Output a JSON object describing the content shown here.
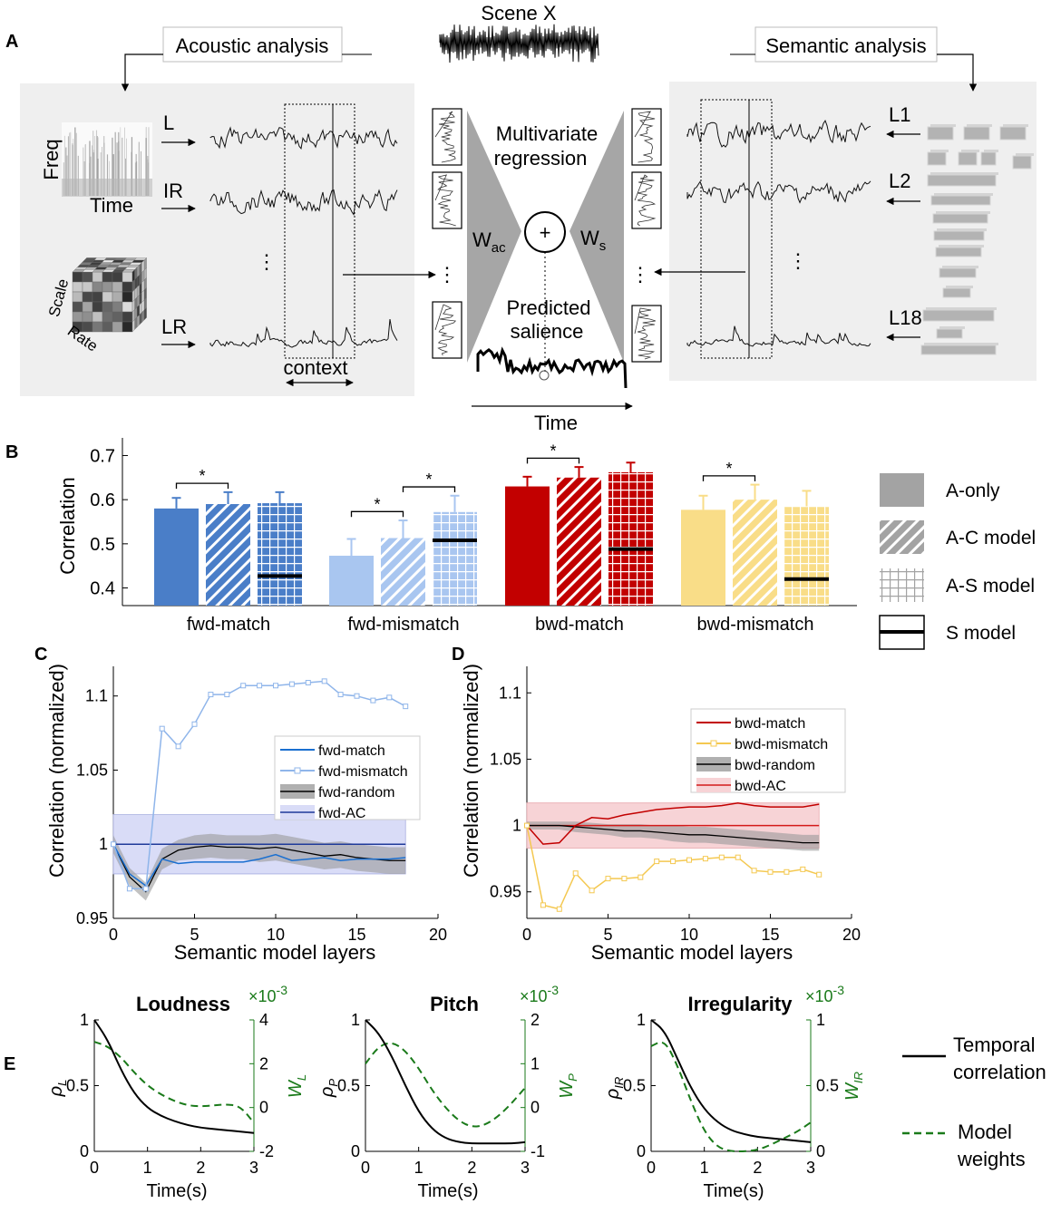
{
  "panelA": {
    "letter": "A",
    "scene_title": "Scene X",
    "acoustic_label": "Acoustic analysis",
    "semantic_label": "Semantic analysis",
    "freq_label": "Freq",
    "time_label": "Time",
    "scale_label": "Scale",
    "rate_label": "Rate",
    "feat_L": "L",
    "feat_IR": "IR",
    "feat_LR": "LR",
    "dots": "⋮",
    "context_label": "context",
    "regression_label": "Multivariate regression",
    "regression_line1": "Multivariate",
    "regression_line2": "regression",
    "w_ac": "W",
    "w_ac_sub": "ac",
    "w_s": "W",
    "w_s_sub": "s",
    "plus": "+",
    "predicted_line1": "Predicted",
    "predicted_line2": "salience",
    "pred_time_label": "Time",
    "layer_L1": "L1",
    "layer_L2": "L2",
    "layer_L18": "L18"
  },
  "panelB": {
    "letter": "B",
    "ylabel": "Correlation",
    "yticks": [
      "0.4",
      "0.5",
      "0.6",
      "0.7"
    ],
    "legend": [
      "A-only",
      "A-C model",
      "A-S model",
      "S model"
    ],
    "sig": "*"
  },
  "panelC": {
    "letter": "C",
    "ylabel": "Correlation (normalized)",
    "xlabel": "Semantic model layers",
    "xticks": [
      "0",
      "5",
      "10",
      "15",
      "20"
    ],
    "yticks": [
      "0.95",
      "1",
      "1.05",
      "1.1"
    ],
    "legend": [
      "fwd-match",
      "fwd-mismatch",
      "fwd-random",
      "fwd-AC"
    ]
  },
  "panelD": {
    "letter": "D",
    "ylabel": "Correlation (normalized)",
    "xlabel": "Semantic model layers",
    "xticks": [
      "0",
      "5",
      "10",
      "15",
      "20"
    ],
    "yticks": [
      "0.95",
      "1",
      "1.05",
      "1.1"
    ],
    "legend": [
      "bwd-match",
      "bwd-mismatch",
      "bwd-random",
      "bwd-AC"
    ]
  },
  "panelE": {
    "letter": "E",
    "xlabel": "Time(s)",
    "exponent": "×10",
    "exponent_power": "-3",
    "xticks": [
      "0",
      "1",
      "2",
      "3"
    ],
    "left_yticks": [
      "0",
      "0.5",
      "1"
    ],
    "subplots": [
      {
        "title": "Loudness",
        "rho_sub": "L",
        "w_sub": "L",
        "right_yticks": [
          "-2",
          "0",
          "2",
          "4"
        ]
      },
      {
        "title": "Pitch",
        "rho_sub": "P",
        "w_sub": "P",
        "right_yticks": [
          "-1",
          "0",
          "1",
          "2"
        ]
      },
      {
        "title": "Irregularity",
        "rho_sub": "IR",
        "w_sub": "IR",
        "right_yticks": [
          "0",
          "0.5",
          "1"
        ]
      }
    ],
    "rho_symbol": "ρ",
    "w_symbol": "W",
    "legend_temporal_1": "Temporal",
    "legend_temporal_2": "correlation",
    "legend_model_1": "Model",
    "legend_model_2": "weights"
  },
  "colors": {
    "fwd_match": "#4a7ec8",
    "fwd_mismatch": "#a9c6f0",
    "bwd_match": "#c20000",
    "bwd_mismatch": "#f9dd88",
    "navy": "#1f3a9a",
    "green": "#1a7a1a",
    "gray_panel": "#efefef"
  },
  "chart_data": [
    {
      "type": "bar",
      "panel": "B",
      "title": "",
      "ylabel": "Correlation",
      "ylim": [
        0.36,
        0.74
      ],
      "categories": [
        "fwd-match",
        "fwd-mismatch",
        "bwd-match",
        "bwd-mismatch"
      ],
      "series": [
        {
          "name": "A-only",
          "values": [
            0.58,
            0.473,
            0.63,
            0.577
          ],
          "errors": [
            0.024,
            0.038,
            0.022,
            0.032
          ]
        },
        {
          "name": "A-C model",
          "values": [
            0.59,
            0.513,
            0.65,
            0.6
          ],
          "errors": [
            0.027,
            0.04,
            0.024,
            0.034
          ]
        },
        {
          "name": "A-S model",
          "values": [
            0.592,
            0.572,
            0.662,
            0.585
          ],
          "errors": [
            0.025,
            0.037,
            0.022,
            0.035
          ]
        },
        {
          "name": "S model",
          "values": [
            0.427,
            0.508,
            0.488,
            0.42
          ]
        }
      ],
      "significance": [
        {
          "category": "fwd-match",
          "from": "A-only",
          "to": "A-C model"
        },
        {
          "category": "fwd-mismatch",
          "from": "A-only",
          "to": "A-C model"
        },
        {
          "category": "fwd-mismatch",
          "from": "A-C model",
          "to": "A-S model"
        },
        {
          "category": "bwd-match",
          "from": "A-only",
          "to": "A-C model"
        },
        {
          "category": "bwd-mismatch",
          "from": "A-only",
          "to": "A-C model"
        }
      ]
    },
    {
      "type": "line",
      "panel": "C",
      "xlabel": "Semantic model layers",
      "ylabel": "Correlation (normalized)",
      "xlim": [
        0,
        20
      ],
      "ylim": [
        0.95,
        1.12
      ],
      "x": [
        0,
        1,
        2,
        3,
        4,
        5,
        6,
        7,
        8,
        9,
        10,
        11,
        12,
        13,
        14,
        15,
        16,
        17,
        18
      ],
      "series": [
        {
          "name": "fwd-match",
          "values": [
            1.0,
            0.98,
            0.972,
            0.99,
            0.987,
            0.988,
            0.988,
            0.988,
            0.988,
            0.99,
            0.993,
            0.989,
            0.99,
            0.991,
            0.989,
            0.99,
            0.99,
            0.99,
            0.991
          ]
        },
        {
          "name": "fwd-mismatch",
          "values": [
            1.0,
            0.97,
            0.97,
            1.078,
            1.066,
            1.081,
            1.101,
            1.101,
            1.107,
            1.107,
            1.107,
            1.108,
            1.109,
            1.11,
            1.101,
            1.1,
            1.097,
            1.099,
            1.093
          ]
        },
        {
          "name": "fwd-random",
          "values": [
            1.0,
            0.978,
            0.968,
            0.99,
            0.996,
            0.998,
            0.999,
            0.998,
            0.998,
            0.997,
            0.998,
            0.996,
            0.994,
            0.992,
            0.993,
            0.991,
            0.99,
            0.989,
            0.989
          ],
          "band": [
            0.006,
            0.006,
            0.006,
            0.007,
            0.007,
            0.008,
            0.008,
            0.008,
            0.008,
            0.009,
            0.009,
            0.009,
            0.009,
            0.009,
            0.009,
            0.009,
            0.009,
            0.009,
            0.009
          ]
        },
        {
          "name": "fwd-AC",
          "values": [
            1.0,
            1.0,
            1.0,
            1.0,
            1.0,
            1.0,
            1.0,
            1.0,
            1.0,
            1.0,
            1.0,
            1.0,
            1.0,
            1.0,
            1.0,
            1.0,
            1.0,
            1.0,
            1.0
          ],
          "band": [
            0.02,
            0.02,
            0.02,
            0.02,
            0.02,
            0.02,
            0.02,
            0.02,
            0.02,
            0.02,
            0.02,
            0.02,
            0.02,
            0.02,
            0.02,
            0.02,
            0.02,
            0.02,
            0.02
          ]
        }
      ]
    },
    {
      "type": "line",
      "panel": "D",
      "xlabel": "Semantic model layers",
      "ylabel": "Correlation (normalized)",
      "xlim": [
        0,
        20
      ],
      "ylim": [
        0.93,
        1.12
      ],
      "x": [
        0,
        1,
        2,
        3,
        4,
        5,
        6,
        7,
        8,
        9,
        10,
        11,
        12,
        13,
        14,
        15,
        16,
        17,
        18
      ],
      "series": [
        {
          "name": "bwd-match",
          "values": [
            1.0,
            0.986,
            0.987,
            1.0,
            1.006,
            1.005,
            1.008,
            1.01,
            1.012,
            1.013,
            1.014,
            1.014,
            1.015,
            1.017,
            1.015,
            1.014,
            1.014,
            1.014,
            1.016
          ]
        },
        {
          "name": "bwd-mismatch",
          "values": [
            1.0,
            0.94,
            0.937,
            0.964,
            0.951,
            0.96,
            0.96,
            0.961,
            0.973,
            0.973,
            0.974,
            0.975,
            0.976,
            0.976,
            0.966,
            0.965,
            0.965,
            0.967,
            0.963
          ]
        },
        {
          "name": "bwd-random",
          "values": [
            1.0,
            1.0,
            1.0,
            0.999,
            0.998,
            0.997,
            0.996,
            0.996,
            0.995,
            0.994,
            0.993,
            0.993,
            0.992,
            0.991,
            0.99,
            0.989,
            0.988,
            0.987,
            0.987
          ],
          "band": [
            0.003,
            0.003,
            0.003,
            0.004,
            0.004,
            0.004,
            0.005,
            0.005,
            0.005,
            0.006,
            0.006,
            0.006,
            0.006,
            0.006,
            0.006,
            0.006,
            0.006,
            0.006,
            0.006
          ]
        },
        {
          "name": "bwd-AC",
          "values": [
            1.0,
            1.0,
            1.0,
            1.0,
            1.0,
            1.0,
            1.0,
            1.0,
            1.0,
            1.0,
            1.0,
            1.0,
            1.0,
            1.0,
            1.0,
            1.0,
            1.0,
            1.0,
            1.0
          ],
          "band": [
            0.017,
            0.017,
            0.017,
            0.017,
            0.017,
            0.017,
            0.017,
            0.017,
            0.017,
            0.017,
            0.017,
            0.017,
            0.017,
            0.017,
            0.017,
            0.017,
            0.017,
            0.017,
            0.017
          ]
        }
      ]
    },
    {
      "type": "line",
      "panel": "E",
      "xlabel": "Time(s)",
      "xlim": [
        0,
        3
      ],
      "subplots": [
        {
          "title": "Loudness",
          "x": [
            0,
            0.25,
            0.5,
            0.75,
            1,
            1.25,
            1.5,
            1.75,
            2,
            2.25,
            2.5,
            2.75,
            3
          ],
          "temporal_correlation": [
            1,
            0.85,
            0.62,
            0.44,
            0.33,
            0.27,
            0.23,
            0.2,
            0.18,
            0.17,
            0.16,
            0.15,
            0.14
          ],
          "model_weights": [
            3.0,
            2.8,
            2.3,
            1.6,
            1.0,
            0.6,
            0.3,
            0.1,
            0.05,
            0.1,
            0.15,
            0.05,
            -0.7
          ],
          "weights_ylim": [
            -2,
            4
          ]
        },
        {
          "title": "Pitch",
          "x": [
            0,
            0.25,
            0.5,
            0.75,
            1,
            1.25,
            1.5,
            1.75,
            2,
            2.25,
            2.5,
            2.75,
            3
          ],
          "temporal_correlation": [
            1,
            0.9,
            0.72,
            0.5,
            0.3,
            0.17,
            0.1,
            0.07,
            0.06,
            0.06,
            0.06,
            0.06,
            0.07
          ],
          "model_weights": [
            1.0,
            1.4,
            1.5,
            1.3,
            0.9,
            0.4,
            0.0,
            -0.3,
            -0.45,
            -0.4,
            -0.2,
            0.1,
            0.45
          ],
          "weights_ylim": [
            -1,
            2
          ]
        },
        {
          "title": "Irregularity",
          "x": [
            0,
            0.25,
            0.5,
            0.75,
            1,
            1.25,
            1.5,
            1.75,
            2,
            2.25,
            2.5,
            2.75,
            3
          ],
          "temporal_correlation": [
            1,
            0.92,
            0.7,
            0.48,
            0.32,
            0.22,
            0.16,
            0.13,
            0.11,
            0.1,
            0.09,
            0.08,
            0.07
          ],
          "model_weights": [
            0.8,
            0.85,
            0.65,
            0.38,
            0.15,
            0.03,
            0.0,
            0.0,
            0.01,
            0.05,
            0.1,
            0.15,
            0.22
          ],
          "weights_ylim": [
            0,
            1
          ]
        }
      ]
    }
  ]
}
